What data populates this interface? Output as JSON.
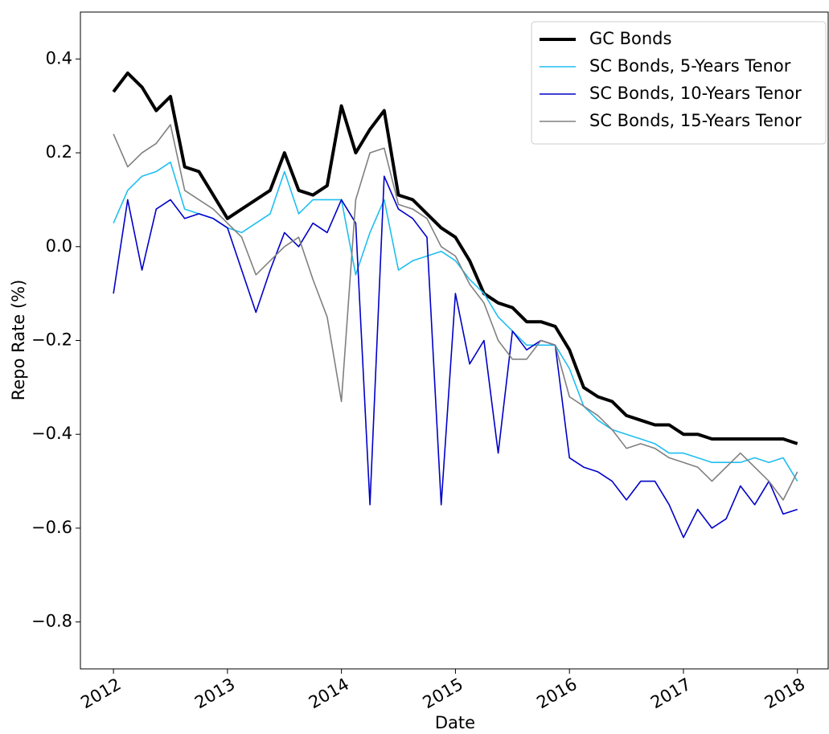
{
  "chart_data": {
    "type": "line",
    "xlabel": "Date",
    "ylabel": "Repo Rate (%)",
    "x": [
      2012,
      2012.125,
      2012.25,
      2012.375,
      2012.5,
      2012.625,
      2012.75,
      2012.875,
      2013,
      2013.125,
      2013.25,
      2013.375,
      2013.5,
      2013.625,
      2013.75,
      2013.875,
      2014,
      2014.125,
      2014.25,
      2014.375,
      2014.5,
      2014.625,
      2014.75,
      2014.875,
      2015,
      2015.125,
      2015.25,
      2015.375,
      2015.5,
      2015.625,
      2015.75,
      2015.875,
      2016,
      2016.125,
      2016.25,
      2016.375,
      2016.5,
      2016.625,
      2016.75,
      2016.875,
      2017,
      2017.125,
      2017.25,
      2017.375,
      2017.5,
      2017.625,
      2017.75,
      2017.875,
      2018
    ],
    "series": [
      {
        "name": "GC Bonds",
        "color": "#000000",
        "line_width": 4,
        "values": [
          0.33,
          0.37,
          0.34,
          0.29,
          0.32,
          0.17,
          0.16,
          0.11,
          0.06,
          0.08,
          0.1,
          0.12,
          0.2,
          0.12,
          0.11,
          0.13,
          0.3,
          0.2,
          0.25,
          0.29,
          0.11,
          0.1,
          0.07,
          0.04,
          0.02,
          -0.03,
          -0.1,
          -0.12,
          -0.13,
          -0.16,
          -0.16,
          -0.17,
          -0.22,
          -0.3,
          -0.32,
          -0.33,
          -0.36,
          -0.37,
          -0.38,
          -0.38,
          -0.4,
          -0.4,
          -0.41,
          -0.41,
          -0.41,
          -0.41,
          -0.41,
          -0.41,
          -0.42
        ]
      },
      {
        "name": "SC Bonds, 5-Years Tenor",
        "color": "#1ebff0",
        "line_width": 1.6,
        "values": [
          0.05,
          0.12,
          0.15,
          0.16,
          0.18,
          0.08,
          0.07,
          0.06,
          0.04,
          0.03,
          0.05,
          0.07,
          0.16,
          0.07,
          0.1,
          0.1,
          0.1,
          -0.06,
          0.03,
          0.1,
          -0.05,
          -0.03,
          -0.02,
          -0.01,
          -0.03,
          -0.07,
          -0.1,
          -0.15,
          -0.18,
          -0.21,
          -0.21,
          -0.21,
          -0.26,
          -0.34,
          -0.37,
          -0.39,
          -0.4,
          -0.41,
          -0.42,
          -0.44,
          -0.44,
          -0.45,
          -0.46,
          -0.46,
          -0.46,
          -0.45,
          -0.46,
          -0.45,
          -0.5
        ]
      },
      {
        "name": "SC Bonds, 10-Years Tenor",
        "color": "#0000c8",
        "line_width": 1.6,
        "values": [
          -0.1,
          0.1,
          -0.05,
          0.08,
          0.1,
          0.06,
          0.07,
          0.06,
          0.04,
          -0.05,
          -0.14,
          -0.05,
          0.03,
          0.0,
          0.05,
          0.03,
          0.1,
          0.05,
          -0.55,
          0.15,
          0.08,
          0.06,
          0.02,
          -0.55,
          -0.1,
          -0.25,
          -0.2,
          -0.44,
          -0.18,
          -0.22,
          -0.2,
          -0.21,
          -0.45,
          -0.47,
          -0.48,
          -0.5,
          -0.54,
          -0.5,
          -0.5,
          -0.55,
          -0.62,
          -0.56,
          -0.6,
          -0.58,
          -0.51,
          -0.55,
          -0.5,
          -0.57,
          -0.56
        ]
      },
      {
        "name": "SC Bonds, 15-Years Tenor",
        "color": "#808080",
        "line_width": 1.6,
        "values": [
          0.24,
          0.17,
          0.2,
          0.22,
          0.26,
          0.12,
          0.1,
          0.08,
          0.05,
          0.02,
          -0.06,
          -0.03,
          0.0,
          0.02,
          -0.07,
          -0.15,
          -0.33,
          0.1,
          0.2,
          0.21,
          0.09,
          0.08,
          0.06,
          0.0,
          -0.02,
          -0.08,
          -0.12,
          -0.2,
          -0.24,
          -0.24,
          -0.2,
          -0.21,
          -0.32,
          -0.34,
          -0.36,
          -0.39,
          -0.43,
          -0.42,
          -0.43,
          -0.45,
          -0.46,
          -0.47,
          -0.5,
          -0.47,
          -0.44,
          -0.47,
          -0.5,
          -0.54,
          -0.48
        ]
      }
    ],
    "xlim": [
      2011.71,
      2018.27
    ],
    "xticks": [
      2012,
      2013,
      2014,
      2015,
      2016,
      2017,
      2018
    ],
    "ylim": [
      -0.9,
      0.5
    ],
    "yticks": [
      {
        "value": -0.8,
        "label": "−0.8"
      },
      {
        "value": -0.6,
        "label": "−0.6"
      },
      {
        "value": -0.4,
        "label": "−0.4"
      },
      {
        "value": -0.2,
        "label": "−0.2"
      },
      {
        "value": 0,
        "label": "0.0"
      },
      0.2,
      0.4
    ],
    "grid": false,
    "legend": "upper right"
  }
}
